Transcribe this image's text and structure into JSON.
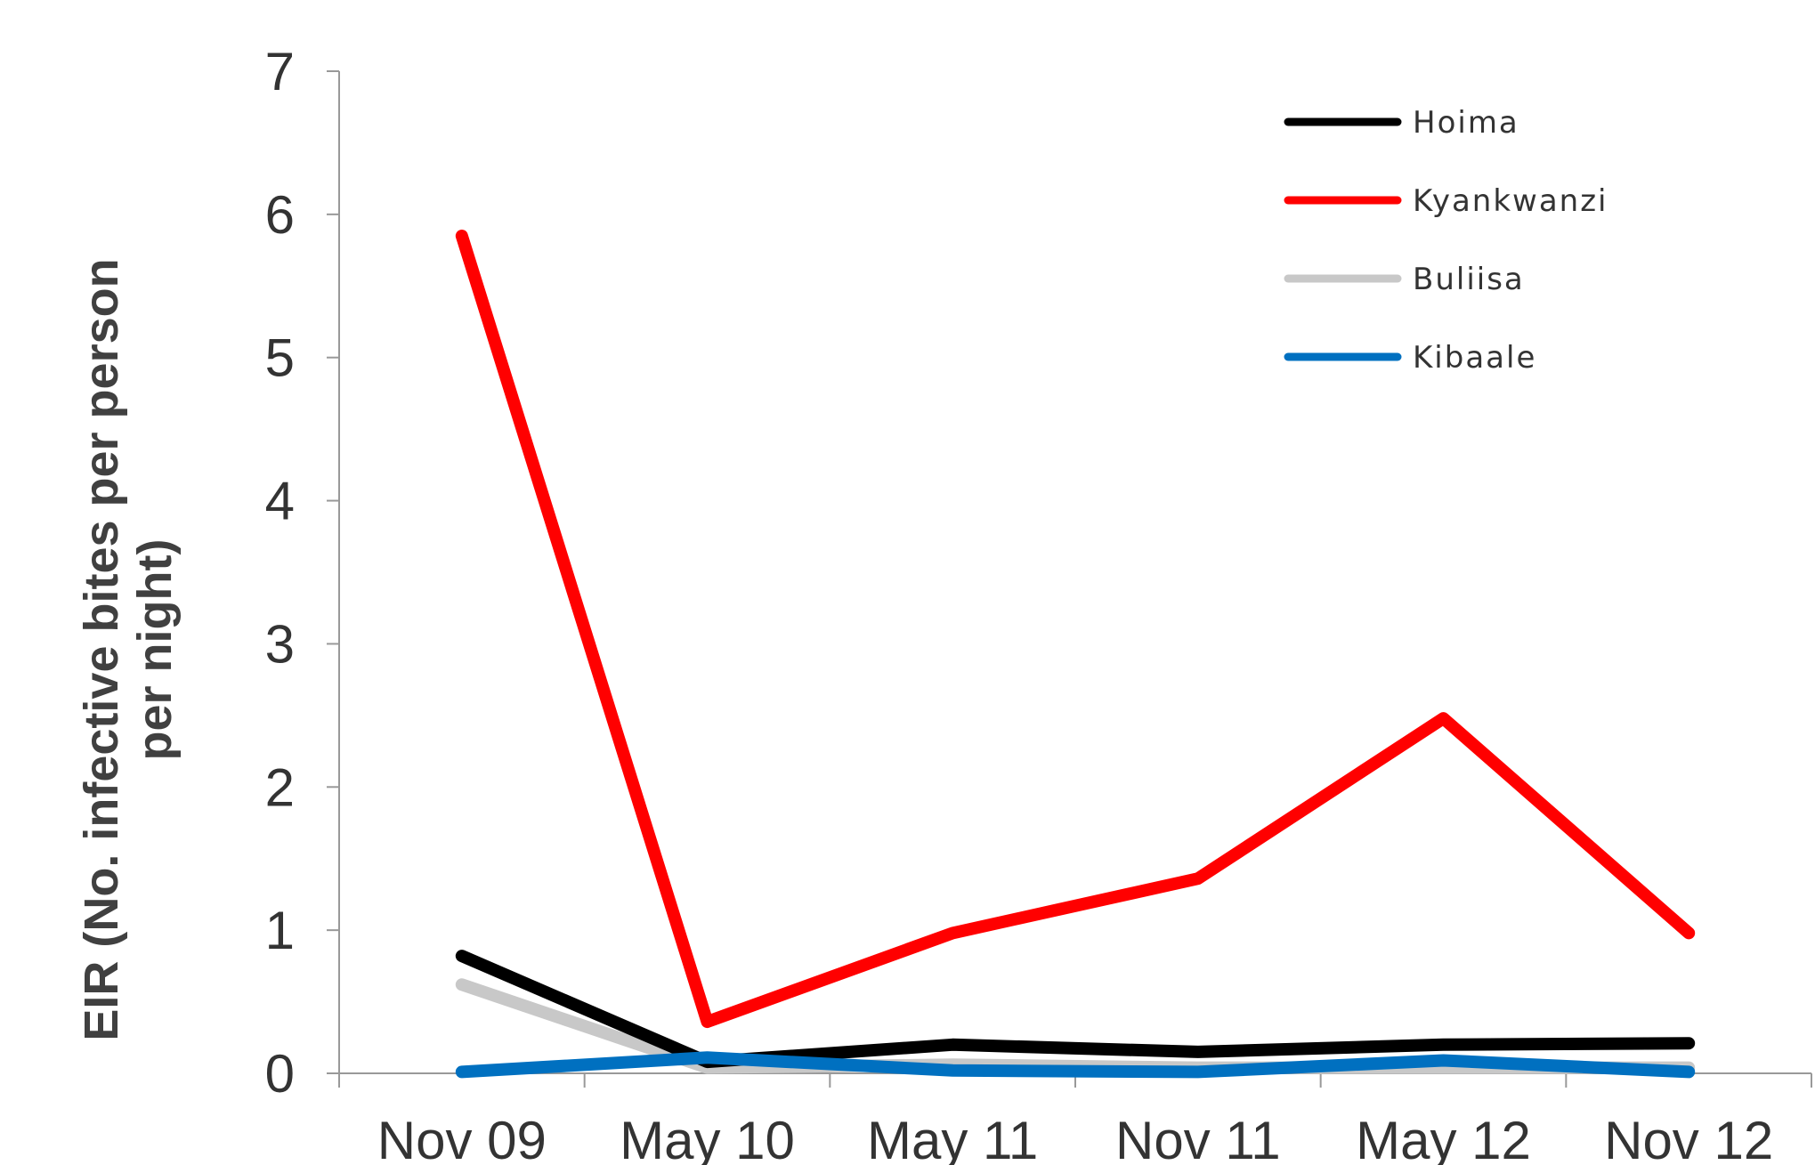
{
  "chart_data": {
    "type": "line",
    "categories": [
      "Nov 09",
      "May 10",
      "May 11",
      "Nov 11",
      "May 12",
      "Nov 12"
    ],
    "series": [
      {
        "name": "Hoima",
        "color": "#000000",
        "values": [
          0.82,
          0.08,
          0.2,
          0.15,
          0.2,
          0.21
        ]
      },
      {
        "name": "Kyankwanzi",
        "color": "#ff0000",
        "values": [
          5.85,
          0.36,
          0.98,
          1.36,
          2.48,
          0.98
        ]
      },
      {
        "name": "Buliisa",
        "color": "#c8c8c8",
        "values": [
          0.62,
          0.04,
          0.06,
          0.04,
          0.04,
          0.04
        ]
      },
      {
        "name": "Kibaale",
        "color": "#0070c0",
        "values": [
          0.01,
          0.11,
          0.02,
          0.01,
          0.09,
          0.01
        ]
      }
    ],
    "ylabel_line1": "EIR (No. infective bites per person",
    "ylabel_line2": "per night)",
    "ylim": [
      0,
      7
    ],
    "yticks": [
      0,
      1,
      2,
      3,
      4,
      5,
      6,
      7
    ],
    "grid": false,
    "legend_position": "top-right"
  }
}
